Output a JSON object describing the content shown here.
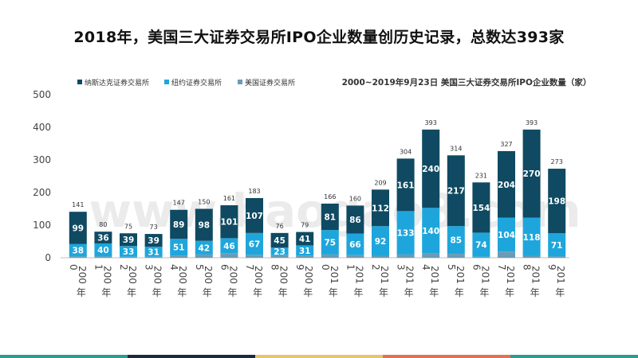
{
  "page": {
    "title": "2018年，美国三大证券交易所IPO企业数量创历史记录，总数达393家",
    "watermark": "www.baogao8.com",
    "bottom_bar_colors": [
      "#2a9d8f",
      "#1c2b3a",
      "#e9c46a",
      "#e76f51",
      "#2a9d8f"
    ]
  },
  "chart_data": {
    "type": "bar",
    "stacked": true,
    "title": "2000~2019年9月23日 美国三大证券交易所IPO企业数量（家）",
    "categories": [
      "2000年",
      "2001年",
      "2002年",
      "2003年",
      "2004年",
      "2005年",
      "2006年",
      "2007年",
      "2008年",
      "2009年",
      "2010年",
      "2011年",
      "2012年",
      "2013年",
      "2014年",
      "2015年",
      "2016年",
      "2017年",
      "2018年",
      "2019年"
    ],
    "category_labels": [
      {
        "digit": "0",
        "prefix": "200",
        "suffix": "年"
      },
      {
        "digit": "1",
        "prefix": "200",
        "suffix": "年"
      },
      {
        "digit": "2",
        "prefix": "200",
        "suffix": "年"
      },
      {
        "digit": "3",
        "prefix": "200",
        "suffix": "年"
      },
      {
        "digit": "4",
        "prefix": "200",
        "suffix": "年"
      },
      {
        "digit": "5",
        "prefix": "200",
        "suffix": "年"
      },
      {
        "digit": "6",
        "prefix": "200",
        "suffix": "年"
      },
      {
        "digit": "7",
        "prefix": "200",
        "suffix": "年"
      },
      {
        "digit": "8",
        "prefix": "200",
        "suffix": "年"
      },
      {
        "digit": "9",
        "prefix": "200",
        "suffix": "年"
      },
      {
        "digit": "0",
        "prefix": "201",
        "suffix": "年"
      },
      {
        "digit": "1",
        "prefix": "201",
        "suffix": "年"
      },
      {
        "digit": "2",
        "prefix": "201",
        "suffix": "年"
      },
      {
        "digit": "3",
        "prefix": "201",
        "suffix": "年"
      },
      {
        "digit": "4",
        "prefix": "201",
        "suffix": "年"
      },
      {
        "digit": "5",
        "prefix": "201",
        "suffix": "年"
      },
      {
        "digit": "6",
        "prefix": "201",
        "suffix": "年"
      },
      {
        "digit": "7",
        "prefix": "201",
        "suffix": "年"
      },
      {
        "digit": "8",
        "prefix": "201",
        "suffix": "年"
      },
      {
        "digit": "9",
        "prefix": "201",
        "suffix": "年"
      }
    ],
    "series": [
      {
        "name": "美国证券交易所",
        "color": "#6b9bb5",
        "values": [
          4,
          4,
          3,
          3,
          7,
          10,
          14,
          9,
          8,
          7,
          10,
          8,
          5,
          10,
          13,
          12,
          3,
          19,
          5,
          4
        ]
      },
      {
        "name": "纽约证券交易所",
        "color": "#1ea6dc",
        "values": [
          38,
          40,
          33,
          31,
          51,
          42,
          46,
          67,
          23,
          31,
          75,
          66,
          92,
          133,
          140,
          85,
          74,
          104,
          118,
          71
        ]
      },
      {
        "name": "纳斯达克证券交易所",
        "color": "#0f4a62",
        "values": [
          99,
          36,
          39,
          39,
          89,
          98,
          101,
          107,
          45,
          41,
          81,
          86,
          112,
          161,
          240,
          217,
          154,
          204,
          270,
          198
        ]
      }
    ],
    "inner_labels": {
      "纽约证券交易所": [
        38,
        40,
        33,
        31,
        51,
        42,
        46,
        67,
        23,
        31,
        75,
        66,
        92,
        133,
        140,
        85,
        74,
        104,
        118,
        71
      ],
      "纳斯达克证券交易所": [
        99,
        36,
        39,
        39,
        89,
        98,
        101,
        107,
        45,
        41,
        81,
        86,
        112,
        161,
        240,
        217,
        154,
        204,
        270,
        198
      ]
    },
    "totals": [
      141,
      80,
      75,
      73,
      147,
      150,
      161,
      183,
      76,
      79,
      166,
      160,
      209,
      304,
      393,
      314,
      231,
      327,
      393,
      273
    ],
    "legend": [
      "纳斯达克证券交易所",
      "纽约证券交易所",
      "美国证券交易所"
    ],
    "legend_colors": [
      "#0f4a62",
      "#1ea6dc",
      "#6b9bb5"
    ],
    "y_ticks": [
      0,
      100,
      200,
      300,
      400,
      500
    ],
    "ylim": [
      0,
      500
    ],
    "xlabel": "",
    "ylabel": "",
    "grid": false,
    "legend_position": "top-left"
  }
}
